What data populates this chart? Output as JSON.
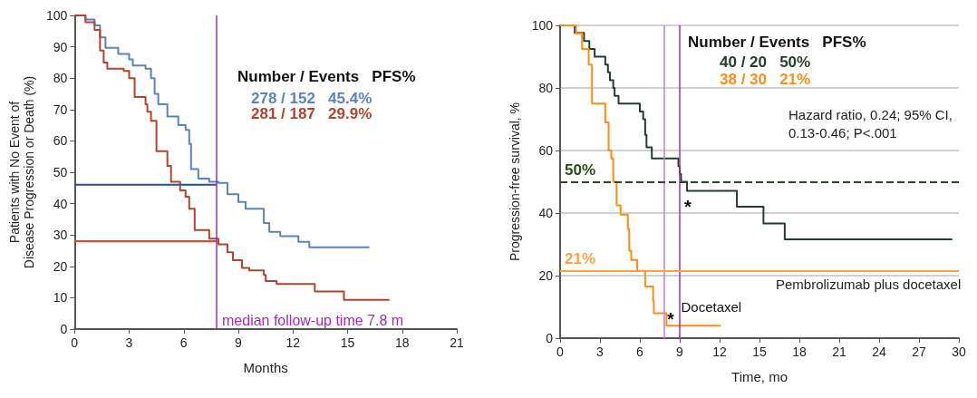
{
  "chart_data": [
    {
      "type": "step",
      "xlabel": "Months",
      "ylabel": "Patients with No Event of\nDisease Progression or Death (%)",
      "legend_title": "Number / Events   PFS%",
      "legend": "top right",
      "xlim": [
        0,
        21
      ],
      "xticks": [
        0,
        3,
        6,
        9,
        12,
        15,
        18,
        21
      ],
      "ylim": [
        0,
        100
      ],
      "yticks": [
        0,
        10,
        20,
        30,
        40,
        50,
        60,
        70,
        80,
        90,
        100
      ],
      "grid": false,
      "ref_lines": [
        {
          "axis": "x",
          "value": 7.8,
          "color": "#9b30b0"
        }
      ],
      "annotations": [
        "median follow-up time 7.8 m"
      ],
      "series": [
        {
          "name": "278 / 152   45.4%",
          "color": "#5b82c0",
          "x": [
            0,
            0.6,
            1.1,
            1.4,
            1.7,
            2.4,
            3.0,
            3.2,
            3.9,
            4.2,
            4.4,
            4.6,
            5.1,
            5.7,
            6.1,
            6.3,
            6.4,
            6.8,
            7.4,
            7.9,
            8.4,
            9.0,
            9.4,
            10.4,
            10.7,
            11.3,
            12.3,
            12.9,
            13.1,
            16.2
          ],
          "values": [
            100,
            98.7,
            96.8,
            93,
            89.7,
            87.7,
            86,
            84,
            83,
            80,
            75,
            71.7,
            67.8,
            65,
            63.5,
            59,
            51,
            48,
            47,
            46.6,
            43,
            40.5,
            38.4,
            33.8,
            31,
            29.6,
            27.8,
            26.1,
            26.1,
            26.1
          ]
        },
        {
          "name": "281 / 187   29.9%",
          "color": "#b0452f",
          "x": [
            0,
            0.6,
            1.1,
            1.4,
            1.6,
            1.8,
            2.7,
            3.0,
            3.3,
            3.9,
            4.0,
            4.2,
            4.5,
            5.1,
            5.3,
            5.8,
            6.1,
            6.3,
            6.6,
            7.4,
            7.9,
            8.4,
            8.7,
            9.2,
            9.6,
            10.4,
            10.5,
            11.1,
            13.2,
            14.8,
            17.3
          ],
          "values": [
            100,
            97.8,
            95.4,
            88.8,
            85,
            83,
            82.3,
            80,
            74,
            71.7,
            69.3,
            66.4,
            56.7,
            52,
            47,
            44.2,
            42.2,
            38.4,
            31.6,
            28.8,
            27,
            24.5,
            22,
            19.5,
            18.7,
            17.3,
            15.3,
            14.4,
            12,
            9.3,
            9.3
          ]
        },
        {
          "color": "#1f4e9c",
          "x": [
            0,
            7.8
          ],
          "values": [
            46,
            46
          ]
        },
        {
          "color": "#ff3b1f",
          "x": [
            0,
            7.8
          ],
          "values": [
            28,
            28
          ]
        }
      ]
    },
    {
      "type": "step",
      "xlabel": "Time, mo",
      "ylabel": "Progression-free survival, %",
      "legend_title": "Number / Events   PFS%",
      "legend": "top",
      "xlim": [
        0,
        30
      ],
      "xticks": [
        0,
        3,
        6,
        9,
        12,
        15,
        18,
        21,
        24,
        27,
        30
      ],
      "ylim": [
        0,
        100
      ],
      "yticks": [
        0,
        20,
        40,
        60,
        80,
        100
      ],
      "grid": "y",
      "annotations": [
        "Hazard ratio, 0.24; 95% CI,\n0.13-0.46; P<.001",
        "*",
        "*",
        {
          "text": "Docetaxel",
          "x": 9.1,
          "y": 10
        },
        "Pembrolizumab plus docetaxel"
      ],
      "ref_lines": [
        {
          "axis": "x",
          "value": 7.8,
          "color": "#c080d0"
        },
        {
          "axis": "x",
          "value": 9,
          "color": "#9b30b0"
        },
        {
          "axis": "y",
          "value": 50,
          "label": "50%",
          "color": "#2d4a1e",
          "line_style": "dashed"
        },
        {
          "axis": "y",
          "value": 21.5,
          "label": "21%",
          "color": "#ffa040"
        }
      ],
      "series": [
        {
          "name": "40 / 20   50%",
          "color": "#263d2e",
          "x": [
            0,
            1.1,
            1.8,
            2.2,
            2.6,
            3.4,
            3.6,
            3.75,
            4.0,
            4.1,
            4.4,
            6.0,
            6.25,
            6.4,
            6.5,
            6.9,
            8.9,
            9.0,
            9.1,
            9.55,
            13.3,
            15.3,
            16.9,
            29.5
          ],
          "values": [
            100,
            97.6,
            95,
            92.5,
            90,
            87.5,
            85,
            82.5,
            80,
            77.5,
            75,
            72.5,
            70,
            65,
            61,
            57.5,
            55,
            52.5,
            50,
            47.1,
            42,
            36.7,
            31.6,
            31.6
          ]
        },
        {
          "name": "38 / 30   21%",
          "color": "#ff8c1a",
          "x": [
            0,
            1.2,
            1.65,
            2.15,
            2.4,
            3.4,
            3.65,
            3.85,
            4.0,
            4.25,
            4.55,
            5.1,
            5.2,
            5.35,
            5.8,
            6.4,
            7.0,
            7.05,
            8.0,
            12.1
          ],
          "values": [
            100,
            97.5,
            92.5,
            87.5,
            75,
            69,
            60,
            57.5,
            50,
            42.5,
            39.5,
            35,
            28,
            25,
            21.5,
            16.5,
            12,
            8,
            4,
            4
          ]
        }
      ]
    }
  ]
}
